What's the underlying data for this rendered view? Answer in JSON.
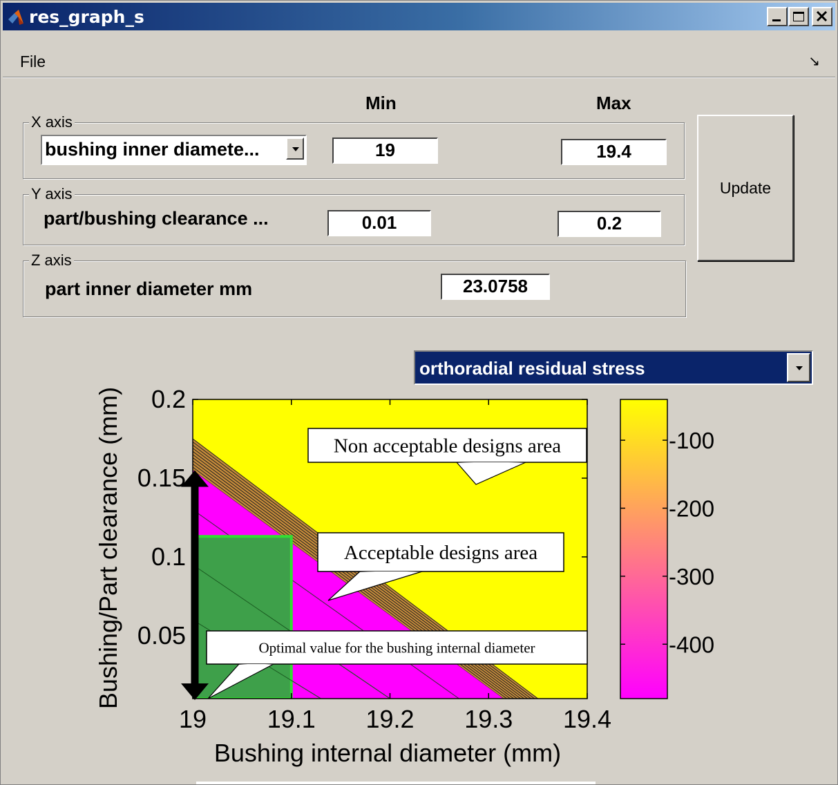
{
  "window": {
    "title": "res_graph_s"
  },
  "menu": {
    "file_label": "File",
    "dock_arrow": "↘"
  },
  "headers": {
    "min_label": "Min",
    "max_label": "Max"
  },
  "x_axis_group": {
    "label": "X axis",
    "selected_variable": "bushing inner diamete...",
    "min_value": "19",
    "max_value": "19.4"
  },
  "y_axis_group": {
    "label": "Y axis",
    "variable": "part/bushing clearance ...",
    "min_value": "0.01",
    "max_value": "0.2"
  },
  "z_axis_group": {
    "label": "Z axis",
    "variable": "part inner diameter mm",
    "value": "23.0758"
  },
  "update_button": {
    "label": "Update"
  },
  "result_selector": {
    "selected": "orthoradial residual stress"
  },
  "colors": {
    "acceptable_region": "#ff00ff",
    "non_acceptable_region": "#ffff00",
    "optimal_rect": "#3ea04a",
    "optimal_rect_border": "#33dd33",
    "selection_blue": "#0a246a"
  },
  "chart_data": {
    "type": "heatmap",
    "xlabel": "Bushing internal diameter (mm)",
    "ylabel": "Bushing/Part clearance (mm)",
    "xlim": [
      19,
      19.4
    ],
    "ylim": [
      0.01,
      0.2
    ],
    "x_ticks": [
      "19",
      "19.1",
      "19.2",
      "19.3",
      "19.4"
    ],
    "y_ticks": [
      "0.05",
      "0.1",
      "0.15",
      "0.2"
    ],
    "y_tick_values": [
      0.05,
      0.1,
      0.15,
      0.2
    ],
    "x_tick_values": [
      19,
      19.1,
      19.2,
      19.3,
      19.4
    ],
    "contour_boundary": {
      "acceptable_edge": [
        [
          19.0,
          0.155
        ],
        [
          19.315,
          0.01
        ]
      ],
      "transition_top": [
        [
          19.0,
          0.175
        ],
        [
          19.35,
          0.01
        ]
      ]
    },
    "colorbar": {
      "ticks": [
        "-100",
        "-200",
        "-300",
        "-400"
      ],
      "tick_values": [
        -100,
        -200,
        -300,
        -400
      ],
      "range": [
        -480,
        -40
      ],
      "colormap": "spring"
    },
    "optimal_region": {
      "x": [
        19.0,
        19.1
      ],
      "y": [
        0.01,
        0.113
      ]
    },
    "arrow": {
      "x": 19.0,
      "y": [
        0.01,
        0.155
      ]
    },
    "annotations": {
      "non_acceptable": "Non acceptable designs area",
      "acceptable": "Acceptable designs area",
      "optimal": "Optimal value for the bushing internal diameter"
    }
  }
}
